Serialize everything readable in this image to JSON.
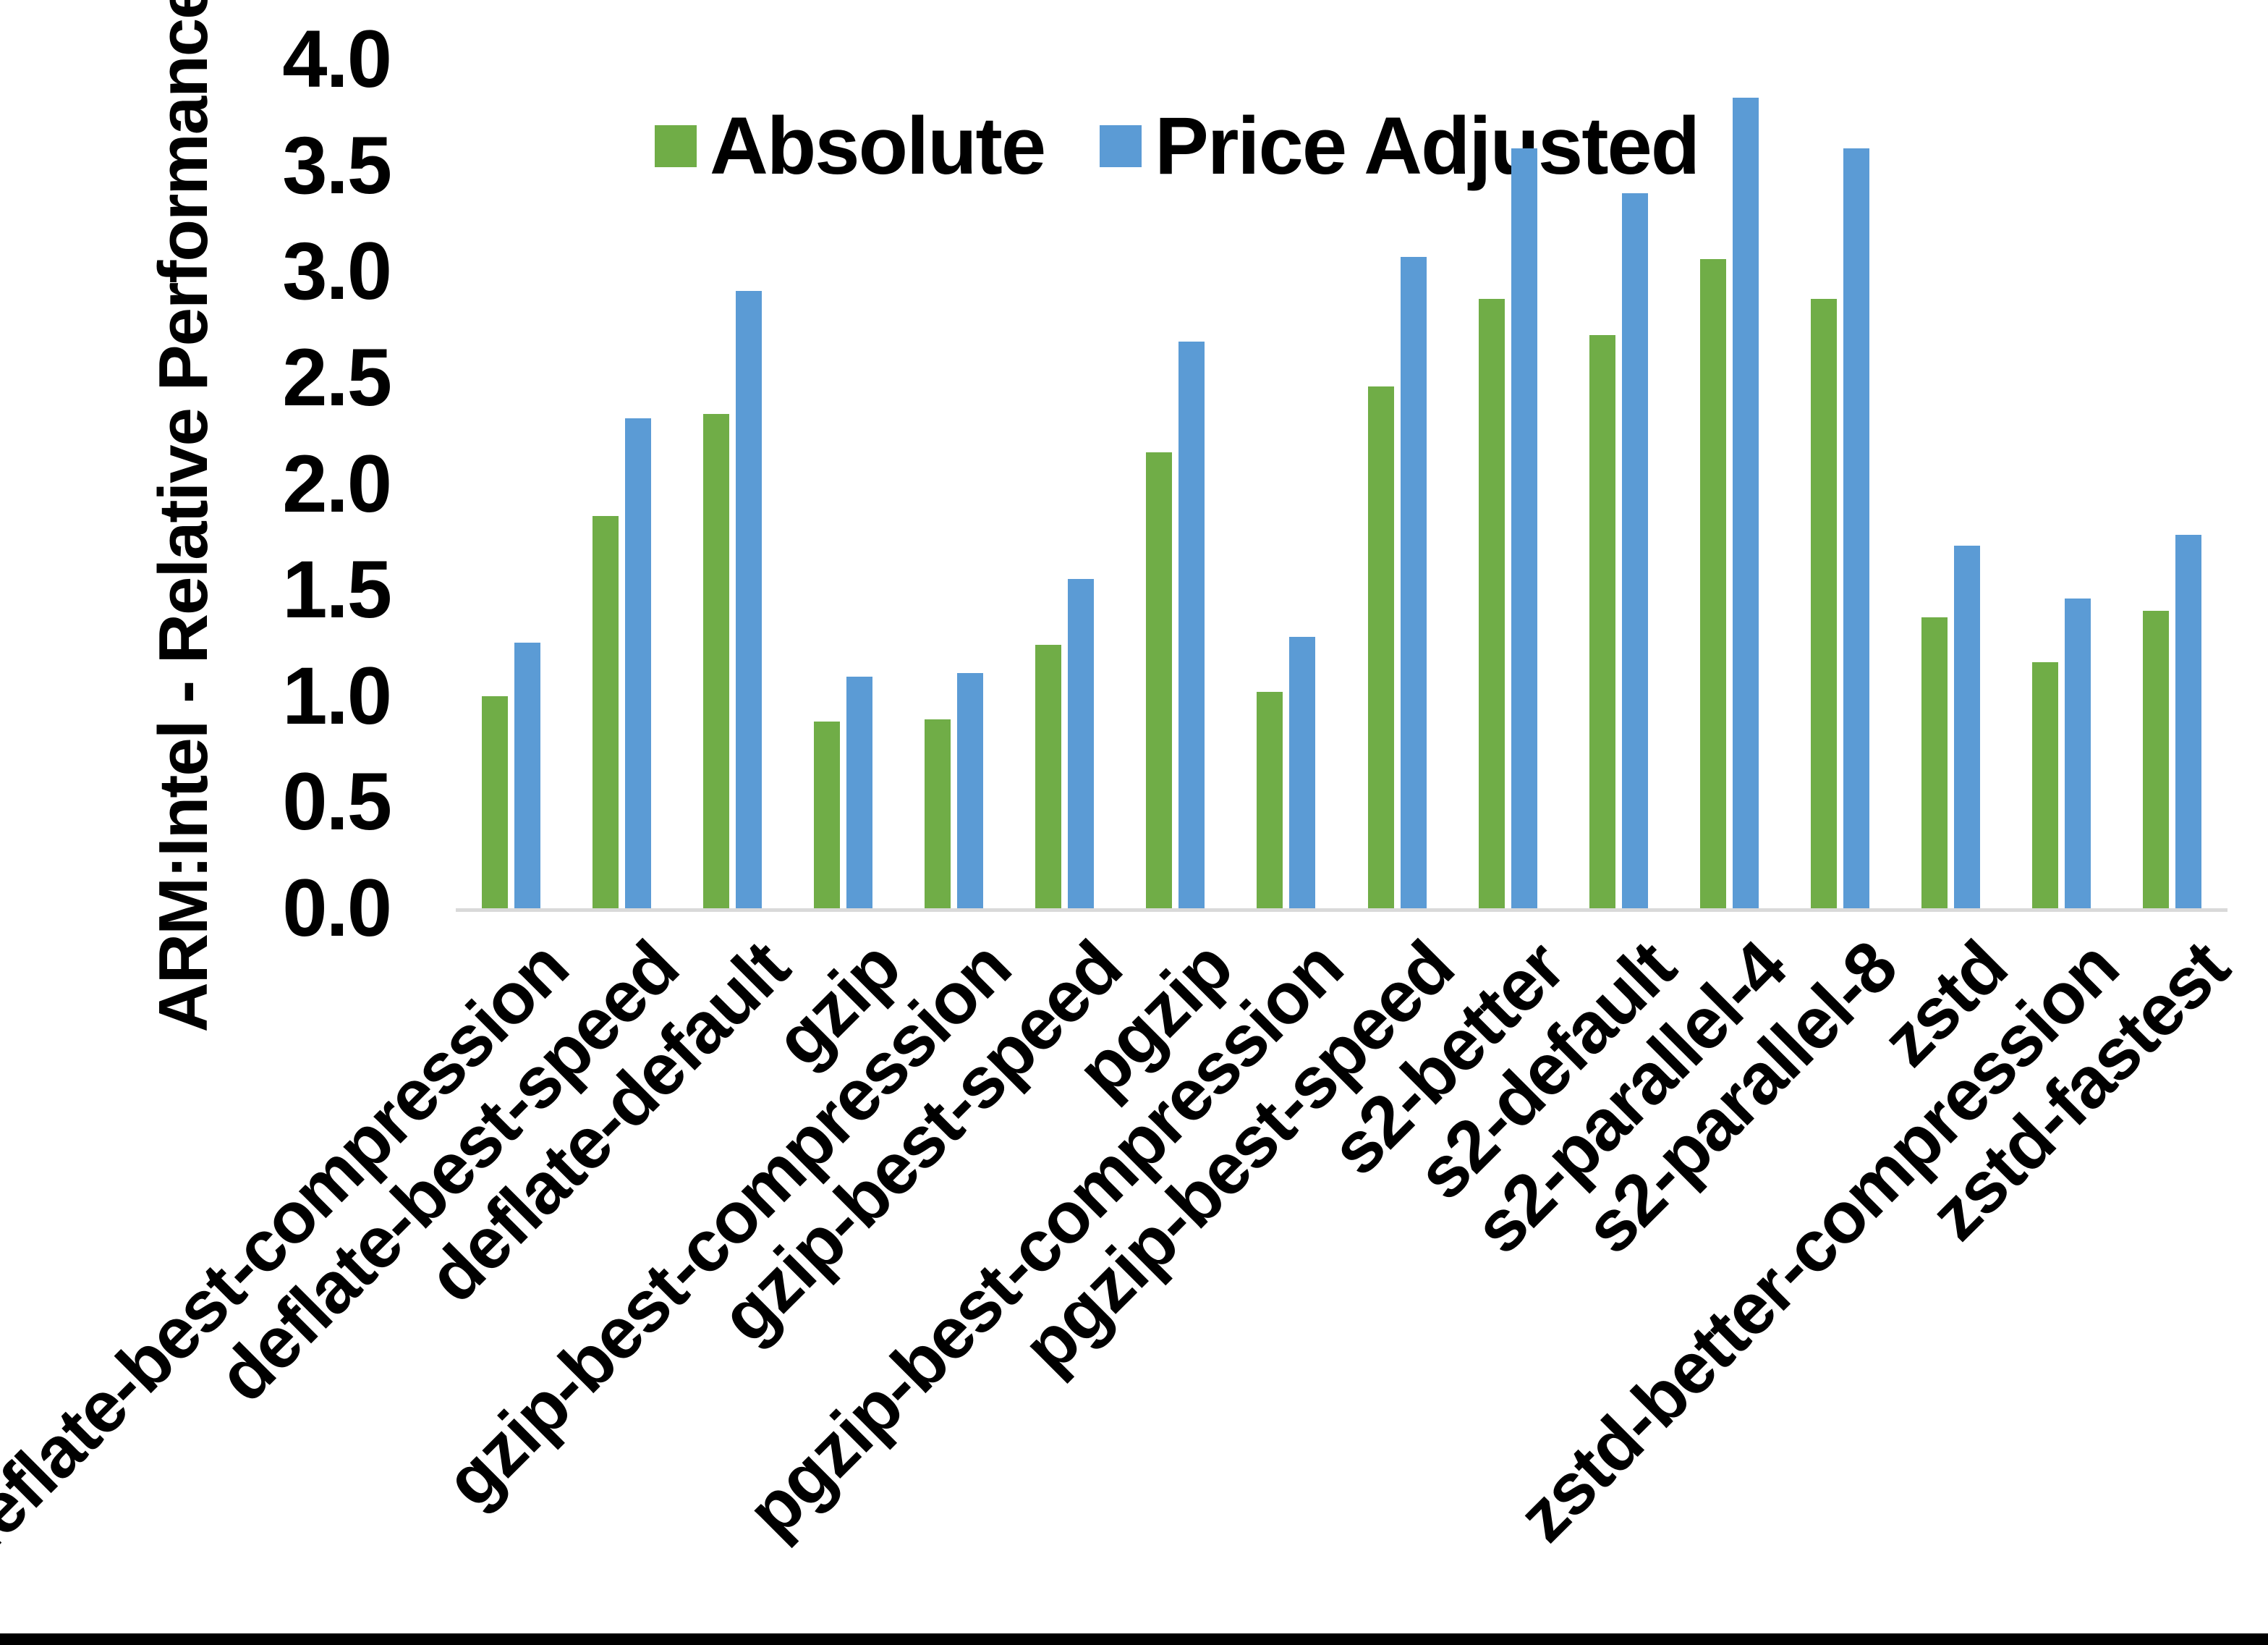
{
  "chart_data": {
    "type": "bar",
    "title": "",
    "xlabel": "",
    "ylabel": "ARM:Intel - Relative Performance",
    "ylim": [
      0,
      4
    ],
    "ytick_step": 0.5,
    "yticks": [
      "4.0",
      "3.5",
      "3.0",
      "2.5",
      "2.0",
      "1.5",
      "1.0",
      "0.5",
      "0.0"
    ],
    "grid": false,
    "legend_position": "top-center-inside",
    "axis_line_color": "#D9D9D9",
    "text_color": "#000000",
    "categories": [
      "deflate-best-compression",
      "deflate-best-speed",
      "deflate-default",
      "gzip",
      "gzip-best-compression",
      "gzip-best-speed",
      "pgzip",
      "pgzip-best-compression",
      "pgzip-best-speed",
      "s2-better",
      "s2-default",
      "s2-parallel-4",
      "s2-parallel-8",
      "zstd",
      "zstd-better-compression",
      "zstd-fastest"
    ],
    "series": [
      {
        "name": "Absolute",
        "color": "#70AD47",
        "values": [
          1.0,
          1.85,
          2.33,
          0.88,
          0.89,
          1.24,
          2.15,
          1.02,
          2.46,
          2.87,
          2.7,
          3.06,
          2.87,
          1.37,
          1.16,
          1.4
        ]
      },
      {
        "name": "Price Adjusted",
        "color": "#5B9BD5",
        "values": [
          1.25,
          2.31,
          2.91,
          1.09,
          1.11,
          1.55,
          2.67,
          1.28,
          3.07,
          3.58,
          3.37,
          3.82,
          3.58,
          1.71,
          1.46,
          1.76
        ]
      }
    ],
    "frame": {
      "bottom_edge_color": "#000000"
    }
  }
}
